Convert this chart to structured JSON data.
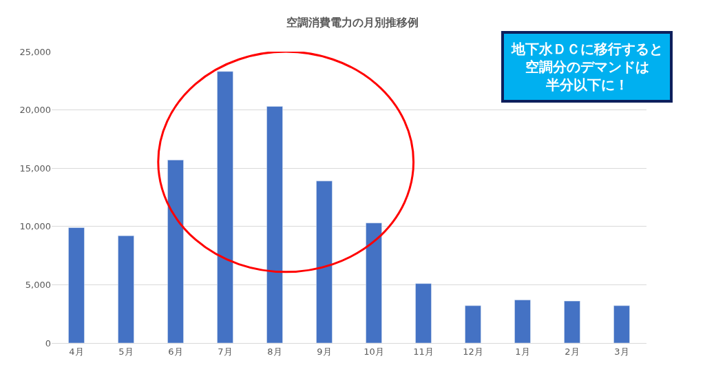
{
  "chart_data": {
    "type": "bar",
    "title": "空調消費電力の月別推移例",
    "categories": [
      "4月",
      "5月",
      "6月",
      "7月",
      "8月",
      "9月",
      "10月",
      "11月",
      "12月",
      "1月",
      "2月",
      "3月"
    ],
    "values": [
      9900,
      9200,
      15700,
      23300,
      20300,
      13900,
      10300,
      5100,
      3200,
      3700,
      3600,
      3200
    ],
    "color": "#4472c4",
    "ylim": [
      0,
      25000
    ],
    "yticks": [
      {
        "value": 0,
        "label": "0"
      },
      {
        "value": 5000,
        "label": "5,000"
      },
      {
        "value": 10000,
        "label": "10,000"
      },
      {
        "value": 15000,
        "label": "15,000"
      },
      {
        "value": 20000,
        "label": "20,000"
      },
      {
        "value": 25000,
        "label": "25,000"
      }
    ],
    "grid": "y",
    "annotations": [
      "地下水ＤＣに移行すると",
      "空調分のデマンドは",
      "半分以下に！"
    ]
  }
}
